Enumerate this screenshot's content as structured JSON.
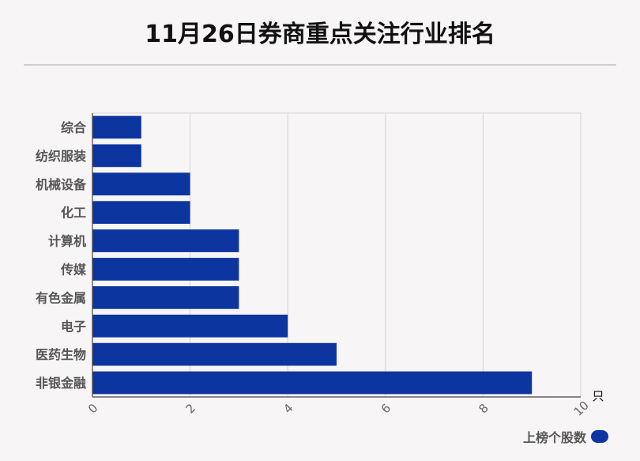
{
  "title": "11月26日券商重点关注行业排名",
  "chart_data": {
    "type": "bar",
    "orientation": "horizontal",
    "categories": [
      "综合",
      "纺织服装",
      "机械设备",
      "化工",
      "计算机",
      "传媒",
      "有色金属",
      "电子",
      "医药生物",
      "非银金融"
    ],
    "series": [
      {
        "name": "上榜个股数",
        "values": [
          1,
          1,
          2,
          2,
          3,
          3,
          3,
          4,
          5,
          9
        ]
      }
    ],
    "xticks": [
      0,
      2,
      4,
      6,
      8,
      10
    ],
    "xlim": [
      0,
      10
    ],
    "unit": "只",
    "grid": true,
    "legend_position": "bottom-right",
    "bar_color": "#0d35a0"
  }
}
